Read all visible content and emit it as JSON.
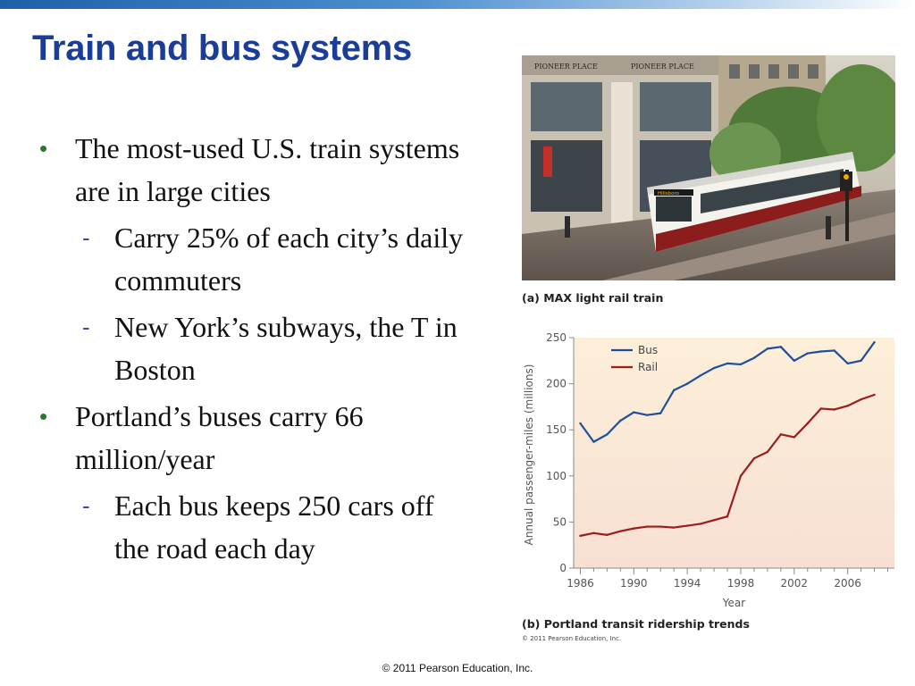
{
  "slide": {
    "title": "Train and bus systems",
    "footer": "© 2011 Pearson Education, Inc."
  },
  "bullets": [
    {
      "text": "The most-used U.S. train systems are in large cities",
      "sub": [
        "Carry 25% of each city’s daily commuters",
        "New York’s subways, the T in Boston"
      ]
    },
    {
      "text": "Portland’s buses carry 66 million/year",
      "sub": [
        "Each bus keeps 250 cars off the road each day"
      ]
    }
  ],
  "bullet_symbol": "•",
  "sub_bullet_symbol": "-",
  "photo": {
    "caption": "(a) MAX light rail train",
    "signs": [
      "PIONEER PLACE",
      "PIONEER PLACE"
    ],
    "train_destination": "Hillsboro"
  },
  "figure_b": {
    "caption": "(b) Portland transit ridership trends",
    "copyright": "© 2011 Pearson Education, Inc."
  },
  "colors": {
    "title": "#1a3d99",
    "bus": "#1f4f9c",
    "rail": "#9e1c1c",
    "chart_bg_top": "#fcefd9",
    "chart_bg_bottom": "#f7e0d3"
  },
  "chart_data": {
    "type": "line",
    "xlabel": "Year",
    "ylabel": "Annual passenger-miles (millions)",
    "xlim": [
      1985.5,
      2009.5
    ],
    "ylim": [
      0,
      250
    ],
    "xticks": [
      1986,
      1990,
      1994,
      1998,
      2002,
      2006
    ],
    "yticks": [
      0,
      50,
      100,
      150,
      200,
      250
    ],
    "legend_position": "top-left",
    "x": [
      1986,
      1987,
      1988,
      1989,
      1990,
      1991,
      1992,
      1993,
      1994,
      1995,
      1996,
      1997,
      1998,
      1999,
      2000,
      2001,
      2002,
      2003,
      2004,
      2005,
      2006,
      2007,
      2008
    ],
    "series": [
      {
        "name": "Bus",
        "color": "#1f4f9c",
        "values": [
          157,
          137,
          145,
          160,
          169,
          166,
          168,
          193,
          200,
          209,
          217,
          222,
          221,
          228,
          238,
          240,
          225,
          233,
          235,
          236,
          222,
          225,
          245
        ]
      },
      {
        "name": "Rail",
        "color": "#9e1c1c",
        "values": [
          35,
          38,
          36,
          40,
          43,
          45,
          45,
          44,
          46,
          48,
          52,
          56,
          100,
          119,
          126,
          145,
          142,
          157,
          173,
          172,
          176,
          183,
          188
        ]
      }
    ]
  }
}
